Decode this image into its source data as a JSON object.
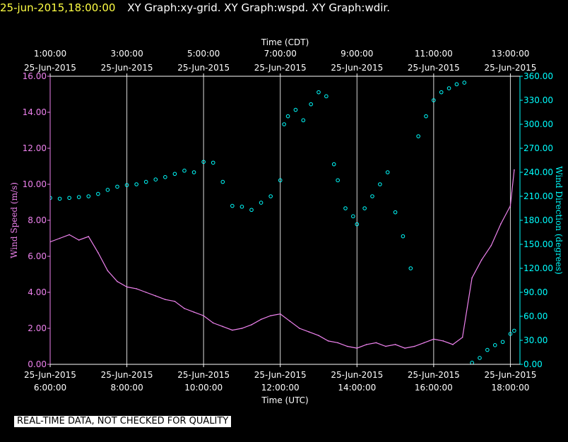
{
  "title": {
    "datetime": "25-jun-2015,18:00:00",
    "graphs": "XY Graph:xy-grid.  XY Graph:wspd.  XY Graph:wdir."
  },
  "notice": "REAL-TIME DATA, NOT CHECKED FOR QUALITY",
  "colors": {
    "wind_speed": "#ee82ee",
    "wind_direction": "#00ffff",
    "grid": "#ffffff",
    "background": "#000000"
  },
  "chart_data": {
    "type": "line",
    "x_top_label": "Time (CDT)",
    "x_bottom_label": "Time (UTC)",
    "y_left_label": "Wind Speed (m/s)",
    "y_right_label": "Wind Direction (degrees)",
    "xlim_utc_hours": [
      6,
      18.25
    ],
    "ylim_left": [
      0,
      16
    ],
    "ylim_right": [
      0,
      360
    ],
    "grid": true,
    "x_ticks_top": [
      {
        "hour": 6,
        "time": "1:00:00",
        "date": "25-Jun-2015"
      },
      {
        "hour": 8,
        "time": "3:00:00",
        "date": "25-Jun-2015"
      },
      {
        "hour": 10,
        "time": "5:00:00",
        "date": "25-Jun-2015"
      },
      {
        "hour": 12,
        "time": "7:00:00",
        "date": "25-Jun-2015"
      },
      {
        "hour": 14,
        "time": "9:00:00",
        "date": "25-Jun-2015"
      },
      {
        "hour": 16,
        "time": "11:00:00",
        "date": "25-Jun-2015"
      },
      {
        "hour": 18,
        "time": "13:00:00",
        "date": "25-Jun-2015"
      }
    ],
    "x_ticks_bottom": [
      {
        "hour": 6,
        "time": "6:00:00",
        "date": "25-Jun-2015"
      },
      {
        "hour": 8,
        "time": "8:00:00",
        "date": "25-Jun-2015"
      },
      {
        "hour": 10,
        "time": "10:00:00",
        "date": "25-Jun-2015"
      },
      {
        "hour": 12,
        "time": "12:00:00",
        "date": "25-Jun-2015"
      },
      {
        "hour": 14,
        "time": "14:00:00",
        "date": "25-Jun-2015"
      },
      {
        "hour": 16,
        "time": "16:00:00",
        "date": "25-Jun-2015"
      },
      {
        "hour": 18,
        "time": "18:00:00",
        "date": "25-Jun-2015"
      }
    ],
    "y_ticks_left": [
      "0.00",
      "2.00",
      "4.00",
      "6.00",
      "8.00",
      "10.00",
      "12.00",
      "14.00",
      "16.00"
    ],
    "y_ticks_right": [
      "0.00",
      "30.00",
      "60.00",
      "90.00",
      "120.00",
      "150.00",
      "180.00",
      "210.00",
      "240.00",
      "270.00",
      "300.00",
      "330.00",
      "360.00"
    ],
    "series": [
      {
        "name": "wspd",
        "axis": "left",
        "style": "line",
        "x": [
          6.0,
          6.25,
          6.5,
          6.75,
          7.0,
          7.25,
          7.5,
          7.75,
          8.0,
          8.25,
          8.5,
          8.75,
          9.0,
          9.25,
          9.5,
          9.75,
          10.0,
          10.25,
          10.5,
          10.75,
          11.0,
          11.25,
          11.5,
          11.75,
          12.0,
          12.25,
          12.5,
          12.75,
          13.0,
          13.25,
          13.5,
          13.75,
          14.0,
          14.25,
          14.5,
          14.75,
          15.0,
          15.25,
          15.5,
          15.75,
          16.0,
          16.25,
          16.5,
          16.75,
          17.0,
          17.25,
          17.5,
          17.75,
          18.0,
          18.1
        ],
        "y": [
          6.8,
          7.0,
          7.2,
          6.9,
          7.1,
          6.2,
          5.2,
          4.6,
          4.3,
          4.2,
          4.0,
          3.8,
          3.6,
          3.5,
          3.1,
          2.9,
          2.7,
          2.3,
          2.1,
          1.9,
          2.0,
          2.2,
          2.5,
          2.7,
          2.8,
          2.4,
          2.0,
          1.8,
          1.6,
          1.3,
          1.2,
          1.0,
          0.9,
          1.1,
          1.2,
          1.0,
          1.1,
          0.9,
          1.0,
          1.2,
          1.4,
          1.3,
          1.1,
          1.5,
          4.8,
          5.8,
          6.6,
          7.8,
          8.8,
          10.8
        ]
      },
      {
        "name": "wdir",
        "axis": "right",
        "style": "points",
        "x": [
          6.0,
          6.25,
          6.5,
          6.75,
          7.0,
          7.25,
          7.5,
          7.75,
          8.0,
          8.25,
          8.5,
          8.75,
          9.0,
          9.25,
          9.5,
          9.75,
          10.0,
          10.25,
          10.5,
          10.75,
          11.0,
          11.25,
          11.5,
          11.75,
          12.0,
          12.1,
          12.2,
          12.4,
          12.6,
          12.8,
          13.0,
          13.2,
          13.4,
          13.5,
          13.7,
          13.9,
          14.0,
          14.2,
          14.4,
          14.6,
          14.8,
          15.0,
          15.2,
          15.4,
          15.6,
          15.8,
          16.0,
          16.2,
          16.4,
          16.6,
          16.8,
          17.0,
          17.2,
          17.4,
          17.6,
          17.8,
          18.0,
          18.1
        ],
        "y": [
          208,
          207,
          208,
          209,
          210,
          213,
          218,
          222,
          224,
          225,
          228,
          231,
          234,
          238,
          242,
          240,
          253,
          252,
          228,
          198,
          197,
          193,
          202,
          210,
          230,
          300,
          310,
          318,
          305,
          325,
          340,
          335,
          250,
          230,
          195,
          185,
          175,
          195,
          210,
          225,
          240,
          190,
          160,
          120,
          285,
          310,
          330,
          340,
          345,
          350,
          352,
          2,
          8,
          18,
          24,
          28,
          38,
          42
        ]
      }
    ]
  }
}
